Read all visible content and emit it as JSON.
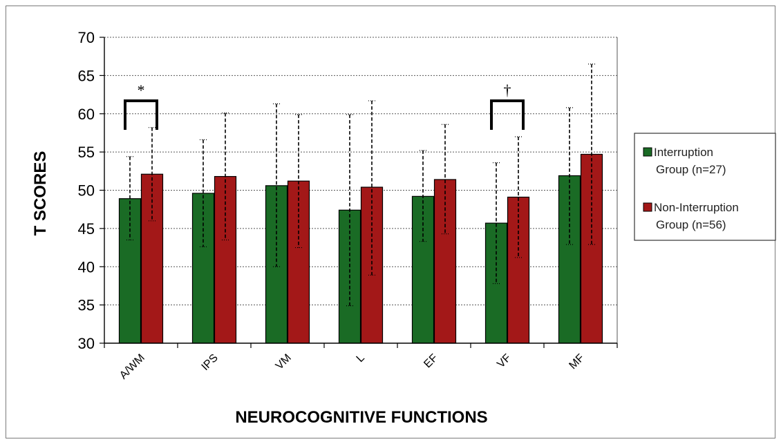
{
  "chart_data": {
    "type": "bar",
    "title": "",
    "xlabel": "NEUROCOGNITIVE FUNCTIONS",
    "ylabel": "T SCORES",
    "ylim": [
      30,
      70
    ],
    "yticks": [
      "30",
      "35",
      "40",
      "45",
      "50",
      "55",
      "60",
      "65",
      "70"
    ],
    "grid": "horizontal dashed",
    "legend_position": "right",
    "categories": [
      "A/WM",
      "IPS",
      "VM",
      "L",
      "EF",
      "VF",
      "MF"
    ],
    "series": [
      {
        "name": "Interruption Group (n=27)",
        "legend_lines": [
          "Interruption",
          "Group (n=27)"
        ],
        "color": "#1a6b25",
        "values": [
          48.9,
          49.6,
          50.6,
          47.4,
          49.2,
          45.7,
          51.9
        ],
        "err_high": [
          54.4,
          56.6,
          61.3,
          59.9,
          55.2,
          53.6,
          60.8
        ],
        "err_low": [
          43.5,
          42.6,
          40.0,
          34.9,
          43.3,
          37.8,
          42.9
        ]
      },
      {
        "name": "Non-Interruption Group (n=56)",
        "legend_lines": [
          "Non-Interruption",
          "Group (n=56)"
        ],
        "color": "#a31818",
        "values": [
          52.1,
          51.8,
          51.2,
          50.4,
          51.4,
          49.1,
          54.7
        ],
        "err_high": [
          58.2,
          60.1,
          59.9,
          61.7,
          58.6,
          57.0,
          66.5
        ],
        "err_low": [
          46.0,
          43.5,
          42.5,
          38.9,
          44.3,
          41.2,
          42.9
        ]
      }
    ],
    "annotations": [
      {
        "category": "A/WM",
        "symbol": "*"
      },
      {
        "category": "VF",
        "symbol": "†"
      }
    ]
  }
}
